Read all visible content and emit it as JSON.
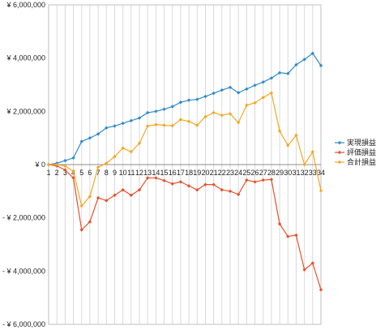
{
  "chart_data": {
    "type": "line",
    "title": "",
    "xlabel": "",
    "ylabel": "",
    "x": [
      1,
      2,
      3,
      4,
      5,
      6,
      7,
      8,
      9,
      10,
      11,
      12,
      13,
      14,
      15,
      16,
      17,
      18,
      19,
      20,
      21,
      22,
      23,
      24,
      25,
      26,
      27,
      28,
      29,
      30,
      31,
      32,
      33,
      34
    ],
    "ylim": [
      -6000000,
      6000000
    ],
    "y_ticks": [
      6000000,
      4000000,
      2000000,
      0,
      -2000000,
      -4000000,
      -6000000
    ],
    "y_tick_labels": [
      "¥ 6,000,000",
      "¥ 4,000,000",
      "¥ 2,000,000",
      "¥ 0",
      "- ¥ 2,000,000",
      "- ¥ 4,000,000",
      "- ¥ 6,000,000"
    ],
    "x_tick_labels": [
      "1",
      "2",
      "3",
      "4",
      "5",
      "6",
      "7",
      "8",
      "9",
      "10",
      "11",
      "12",
      "13",
      "14",
      "15",
      "16",
      "17",
      "18",
      "19",
      "20",
      "21",
      "22",
      "23",
      "24",
      "25",
      "26",
      "27",
      "28",
      "29",
      "30",
      "31",
      "32",
      "33",
      "34"
    ],
    "grid": "vertical",
    "legend_position": "right",
    "series": [
      {
        "name": "実現損益",
        "color": "#2e8bcc",
        "values": [
          0,
          50000,
          150000,
          250000,
          870000,
          1000000,
          1150000,
          1380000,
          1450000,
          1550000,
          1650000,
          1750000,
          1950000,
          2000000,
          2080000,
          2180000,
          2340000,
          2420000,
          2450000,
          2560000,
          2680000,
          2800000,
          2900000,
          2700000,
          2840000,
          2980000,
          3100000,
          3250000,
          3450000,
          3420000,
          3750000,
          3950000,
          4180000,
          3720000
        ]
      },
      {
        "name": "評価損益",
        "color": "#e8502a",
        "values": [
          0,
          -50000,
          -200000,
          -500000,
          -2450000,
          -2150000,
          -1250000,
          -1350000,
          -1150000,
          -950000,
          -1150000,
          -950000,
          -500000,
          -500000,
          -600000,
          -720000,
          -650000,
          -800000,
          -950000,
          -750000,
          -750000,
          -950000,
          -1000000,
          -1120000,
          -580000,
          -650000,
          -580000,
          -560000,
          -2230000,
          -2700000,
          -2650000,
          -3950000,
          -3700000,
          -4700000
        ]
      },
      {
        "name": "合計損益",
        "color": "#f5a623",
        "values": [
          0,
          0,
          -50000,
          -250000,
          -1550000,
          -1200000,
          -100000,
          50000,
          300000,
          620000,
          480000,
          800000,
          1450000,
          1500000,
          1480000,
          1460000,
          1690000,
          1620000,
          1480000,
          1800000,
          1950000,
          1850000,
          1910000,
          1580000,
          2230000,
          2320000,
          2520000,
          2690000,
          1260000,
          720000,
          1100000,
          0,
          480000,
          -980000
        ]
      }
    ]
  }
}
